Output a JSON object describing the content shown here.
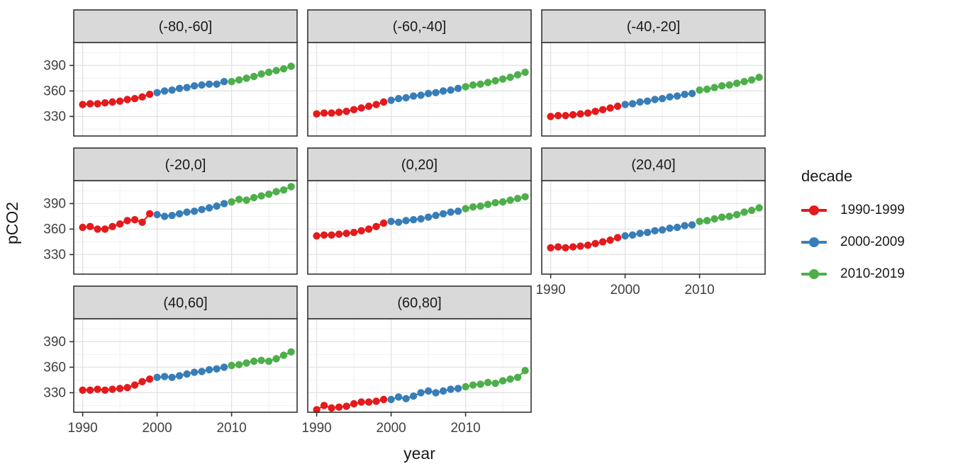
{
  "axis": {
    "x_title": "year",
    "y_title": "pCO2"
  },
  "legend": {
    "title": "decade",
    "items": [
      {
        "label": "1990-1999",
        "color": "#e41a1c"
      },
      {
        "label": "2000-2009",
        "color": "#377eb8"
      },
      {
        "label": "2010-2019",
        "color": "#4daf4a"
      }
    ]
  },
  "colors": {
    "strip_fill": "#d9d9d9",
    "panel_fill": "#ffffff",
    "panel_border": "#333333",
    "grid_major": "#e2e2e2",
    "grid_minor": "#f1f1f1",
    "tick_mark": "#333333",
    "tick_text": "#404040",
    "strip_text": "#1a1a1a"
  },
  "chart_data": {
    "type": "scatter",
    "title": "",
    "xlabel": "year",
    "ylabel": "pCO2",
    "grid": true,
    "legend_position": "right",
    "facet_variable": "latitude band",
    "x_ticks": [
      1990,
      2000,
      2010
    ],
    "y_ticks": [
      330,
      360,
      390
    ],
    "x_minor_ticks": [
      1995,
      2005,
      2015
    ],
    "y_minor_ticks": [
      315,
      345,
      375,
      405
    ],
    "x_domain": [
      1988.8,
      2018.8
    ],
    "y_domain": [
      307,
      417
    ],
    "years": [
      1990,
      1991,
      1992,
      1993,
      1994,
      1995,
      1996,
      1997,
      1998,
      1999,
      2000,
      2001,
      2002,
      2003,
      2004,
      2005,
      2006,
      2007,
      2008,
      2009,
      2010,
      2011,
      2012,
      2013,
      2014,
      2015,
      2016,
      2017,
      2018
    ],
    "decades": [
      {
        "name": "1990-1999",
        "color": "#e41a1c",
        "start": 1990,
        "end": 1999
      },
      {
        "name": "2000-2009",
        "color": "#377eb8",
        "start": 2000,
        "end": 2009
      },
      {
        "name": "2010-2019",
        "color": "#4daf4a",
        "start": 2010,
        "end": 2019
      }
    ],
    "facets": [
      {
        "label": "(-80,-60]",
        "values": [
          344,
          345,
          345,
          346,
          347,
          348,
          350,
          351,
          353,
          356,
          358,
          360,
          361,
          363,
          364,
          366,
          367,
          368,
          368,
          371,
          371,
          373,
          375,
          377,
          380,
          382,
          384,
          386,
          389
        ]
      },
      {
        "label": "(-60,-40]",
        "values": [
          333,
          334,
          334,
          335,
          336,
          338,
          340,
          342,
          344,
          347,
          349,
          351,
          352,
          354,
          355,
          357,
          358,
          360,
          361,
          363,
          365,
          367,
          368,
          370,
          372,
          374,
          376,
          379,
          382
        ]
      },
      {
        "label": "(-40,-20]",
        "values": [
          330,
          331,
          331,
          332,
          333,
          334,
          336,
          338,
          340,
          342,
          344,
          345,
          347,
          348,
          350,
          351,
          353,
          354,
          356,
          357,
          361,
          362,
          364,
          366,
          367,
          369,
          371,
          373,
          376
        ]
      },
      {
        "label": "(-20,0]",
        "values": [
          362,
          363,
          360,
          360,
          363,
          366,
          370,
          371,
          368,
          378,
          377,
          375,
          376,
          378,
          380,
          381,
          383,
          385,
          387,
          390,
          392,
          395,
          394,
          397,
          399,
          401,
          404,
          406,
          410
        ]
      },
      {
        "label": "(0,20]",
        "values": [
          352,
          353,
          353,
          354,
          355,
          356,
          358,
          360,
          363,
          367,
          369,
          368,
          370,
          371,
          372,
          374,
          376,
          378,
          380,
          381,
          384,
          386,
          387,
          389,
          391,
          392,
          394,
          396,
          398
        ]
      },
      {
        "label": "(20,40]",
        "values": [
          338,
          339,
          338,
          339,
          340,
          341,
          343,
          345,
          347,
          350,
          352,
          353,
          355,
          356,
          358,
          359,
          361,
          362,
          364,
          365,
          369,
          370,
          372,
          374,
          375,
          377,
          380,
          382,
          385
        ]
      },
      {
        "label": "(40,60]",
        "values": [
          333,
          333,
          334,
          333,
          334,
          335,
          336,
          339,
          343,
          346,
          348,
          349,
          348,
          350,
          352,
          354,
          355,
          357,
          358,
          360,
          362,
          363,
          365,
          367,
          368,
          367,
          370,
          374,
          378
        ]
      },
      {
        "label": "(60,80]",
        "values": [
          310,
          315,
          312,
          313,
          314,
          317,
          319,
          319,
          320,
          322,
          322,
          325,
          323,
          326,
          330,
          332,
          330,
          332,
          334,
          335,
          337,
          339,
          340,
          342,
          341,
          344,
          346,
          348,
          356
        ]
      }
    ]
  }
}
